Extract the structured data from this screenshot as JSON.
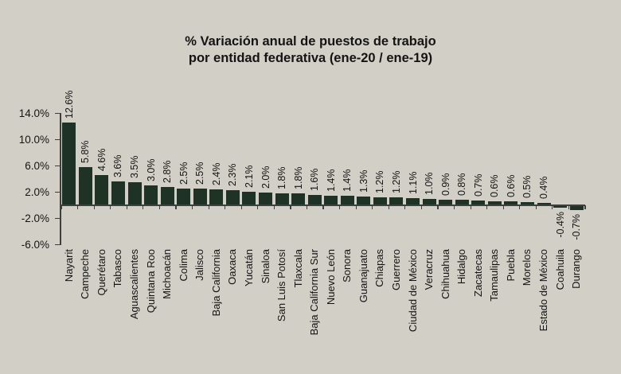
{
  "title": {
    "line1": "% Variación anual de puestos de trabajo",
    "line2": "por entidad federativa (ene-20 / ene-19)"
  },
  "chart_data": {
    "type": "bar",
    "title": "% Variación anual de puestos de trabajo por entidad federativa (ene-20 / ene-19)",
    "categories": [
      "Nayarit",
      "Campeche",
      "Querétaro",
      "Tabasco",
      "Aguascalientes",
      "Quintana Roo",
      "Michoacán",
      "Colima",
      "Jalisco",
      "Baja California",
      "Oaxaca",
      "Yucatán",
      "Sinaloa",
      "San Luis Potosí",
      "Tlaxcala",
      "Baja California Sur",
      "Nuevo León",
      "Sonora",
      "Guanajuato",
      "Chiapas",
      "Guerrero",
      "Ciudad de México",
      "Veracruz",
      "Chihuahua",
      "Hidalgo",
      "Zacatecas",
      "Tamaulipas",
      "Puebla",
      "Morelos",
      "Estado de México",
      "Coahuila",
      "Durango"
    ],
    "values": [
      12.6,
      5.8,
      4.6,
      3.6,
      3.5,
      3.0,
      2.8,
      2.5,
      2.5,
      2.4,
      2.3,
      2.1,
      2.0,
      1.8,
      1.8,
      1.6,
      1.4,
      1.4,
      1.3,
      1.2,
      1.2,
      1.1,
      1.0,
      0.9,
      0.8,
      0.7,
      0.6,
      0.6,
      0.5,
      0.4,
      -0.4,
      -0.7
    ],
    "bar_labels": [
      "12.6%",
      "5.8%",
      "4.6%",
      "3.6%",
      "3.5%",
      "3.0%",
      "2.8%",
      "2.5%",
      "2.5%",
      "2.4%",
      "2.3%",
      "2.1%",
      "2.0%",
      "1.8%",
      "1.8%",
      "1.6%",
      "1.4%",
      "1.4%",
      "1.3%",
      "1.2%",
      "1.2%",
      "1.1%",
      "1.0%",
      "0.9%",
      "0.8%",
      "0.7%",
      "0.6%",
      "0.6%",
      "0.5%",
      "0.4%",
      "-0.4%",
      "-0.7%"
    ],
    "xlabel": "",
    "ylabel": "",
    "ylim": [
      -6,
      14
    ],
    "y_ticks": [
      {
        "label": "14.0%",
        "value": 14
      },
      {
        "label": "10.0%",
        "value": 10
      },
      {
        "label": "6.0%",
        "value": 6
      },
      {
        "label": "2.0%",
        "value": 2
      },
      {
        "label": "-2.0%",
        "value": -2
      },
      {
        "label": "-6.0%",
        "value": -6
      }
    ],
    "grid": false,
    "legend": false,
    "colors": {
      "background": "#d2cfc7",
      "bar": "#1e3226",
      "text": "#141414",
      "axis": "#3f3f3f"
    }
  }
}
